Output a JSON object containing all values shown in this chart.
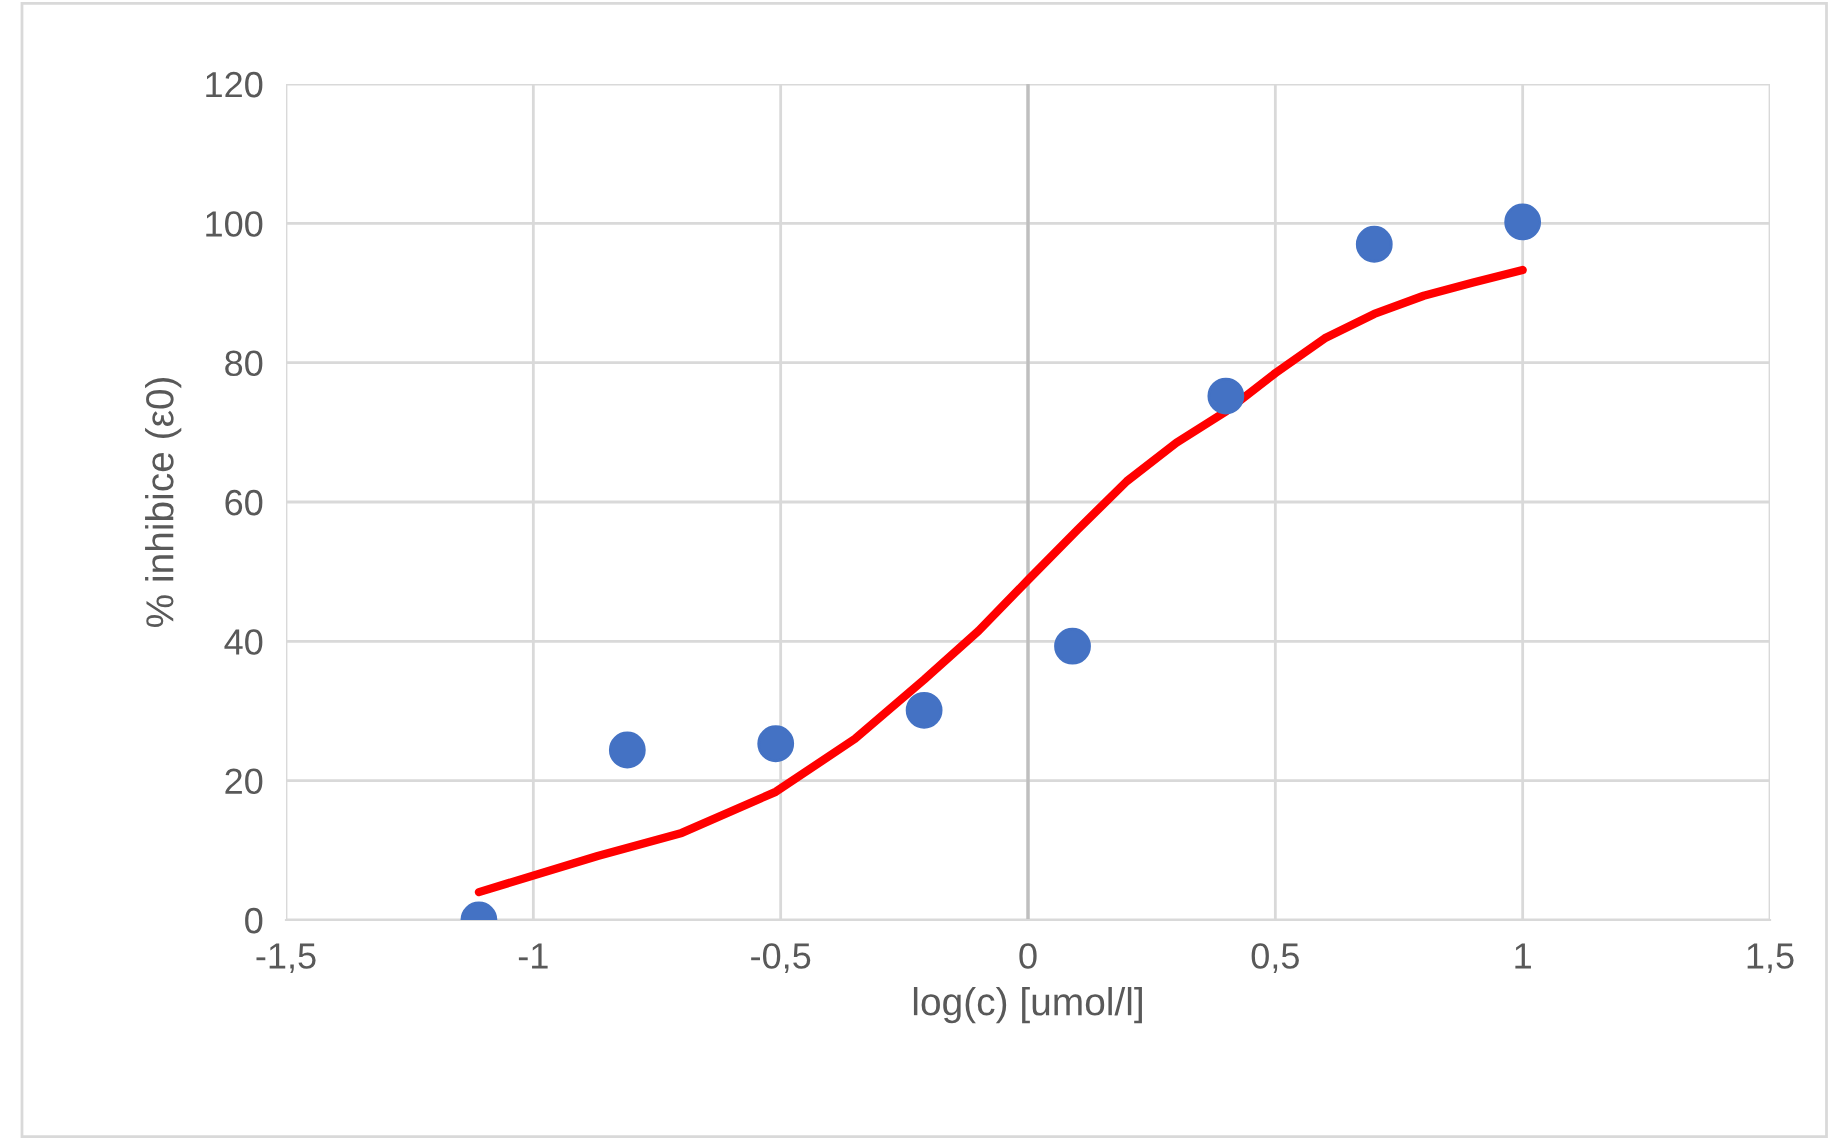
{
  "chart_data": {
    "type": "scatter",
    "xlabel": "log(c) [umol/l]",
    "ylabel": "% inhibice (ε0)",
    "xlim": [
      -1.5,
      1.5
    ],
    "ylim": [
      0,
      120
    ],
    "xticks": [
      {
        "value": -1.5,
        "label": "-1,5"
      },
      {
        "value": -1,
        "label": "-1"
      },
      {
        "value": -0.5,
        "label": "-0,5"
      },
      0,
      {
        "value": 0.5,
        "label": "0,5"
      },
      1,
      {
        "value": 1.5,
        "label": "1,5"
      }
    ],
    "yticks": [
      0,
      20,
      40,
      60,
      80,
      100,
      120
    ],
    "grid": true,
    "series": [
      {
        "color": "#4472c4",
        "marker": "circle",
        "x": [
          -1.11,
          -0.81,
          -0.51,
          -0.21,
          0.09,
          0.4,
          0.7,
          1.0
        ],
        "values": [
          0,
          24.4,
          25.3,
          30.1,
          39.3,
          75.2,
          97.0,
          100.2
        ]
      },
      {
        "type": "line",
        "color": "#ff0000",
        "marker": "none",
        "line_style": "solid",
        "x": [
          -1.11,
          -0.87,
          -0.7,
          -0.51,
          -0.35,
          -0.21,
          -0.1,
          0,
          0.1,
          0.2,
          0.3,
          0.4,
          0.5,
          0.6,
          0.7,
          0.8,
          0.9,
          1.0
        ],
        "values": [
          4.0,
          9.2,
          12.5,
          18.4,
          26,
          34.5,
          41.5,
          48.8,
          56,
          63,
          68.5,
          73,
          78.5,
          83.5,
          87,
          89.6,
          91.5,
          93.3
        ]
      }
    ]
  }
}
